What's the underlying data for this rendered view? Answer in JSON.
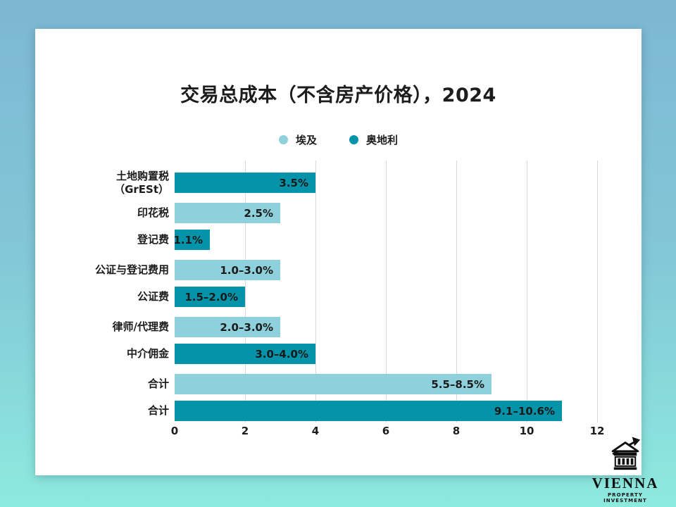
{
  "title": "交易总成本（不含房产价格），2024",
  "legend": {
    "items": [
      {
        "label": "埃及",
        "color": "#8ed1dc"
      },
      {
        "label": "奥地利",
        "color": "#0593a9"
      }
    ]
  },
  "chart_data": {
    "type": "bar",
    "orientation": "horizontal",
    "title": "交易总成本（不含房产价格），2024",
    "xlabel": "",
    "ylabel": "",
    "xlim": [
      0,
      12
    ],
    "x_ticks": [
      0,
      2,
      4,
      6,
      8,
      10,
      12
    ],
    "grid": "vertical",
    "legend_position": "top-center",
    "unit": "%",
    "series_names": [
      "埃及",
      "奥地利"
    ],
    "colors": {
      "埃及": "#8ed1dc",
      "奥地利": "#0593a9"
    },
    "rows": [
      {
        "label_lines": [
          "土地购置税",
          "（GrESt）"
        ],
        "series": "奥地利",
        "value_label": "3.5%",
        "value_min": 3.5,
        "value_max": 3.5,
        "bar_length": 4,
        "group": 0
      },
      {
        "label_lines": [
          "印花税"
        ],
        "series": "埃及",
        "value_label": "2.5%",
        "value_min": 2.5,
        "value_max": 2.5,
        "bar_length": 3,
        "group": 1
      },
      {
        "label_lines": [
          "登记费"
        ],
        "series": "奥地利",
        "value_label": "1.1%",
        "value_min": 1.1,
        "value_max": 1.1,
        "bar_length": 1,
        "group": 1
      },
      {
        "label_lines": [
          "公证与登记费用"
        ],
        "series": "埃及",
        "value_label": "1.0–3.0%",
        "value_min": 1.0,
        "value_max": 3.0,
        "bar_length": 3,
        "group": 2
      },
      {
        "label_lines": [
          "公证费"
        ],
        "series": "奥地利",
        "value_label": "1.5–2.0%",
        "value_min": 1.5,
        "value_max": 2.0,
        "bar_length": 2,
        "group": 2
      },
      {
        "label_lines": [
          "律师/代理费"
        ],
        "series": "埃及",
        "value_label": "2.0–3.0%",
        "value_min": 2.0,
        "value_max": 3.0,
        "bar_length": 3,
        "group": 3
      },
      {
        "label_lines": [
          "中介佣金"
        ],
        "series": "奥地利",
        "value_label": "3.0–4.0%",
        "value_min": 3.0,
        "value_max": 4.0,
        "bar_length": 4,
        "group": 3
      },
      {
        "label_lines": [
          "合计"
        ],
        "series": "埃及",
        "value_label": "5.5–8.5%",
        "value_min": 5.5,
        "value_max": 8.5,
        "bar_length": 9,
        "group": 4
      },
      {
        "label_lines": [
          "合计"
        ],
        "series": "奥地利",
        "value_label": "9.1–10.6%",
        "value_min": 9.1,
        "value_max": 10.6,
        "bar_length": 11,
        "group": 4
      }
    ]
  },
  "logo": {
    "name": "VIENNA",
    "subtitle": "PROPERTY INVESTMENT"
  }
}
